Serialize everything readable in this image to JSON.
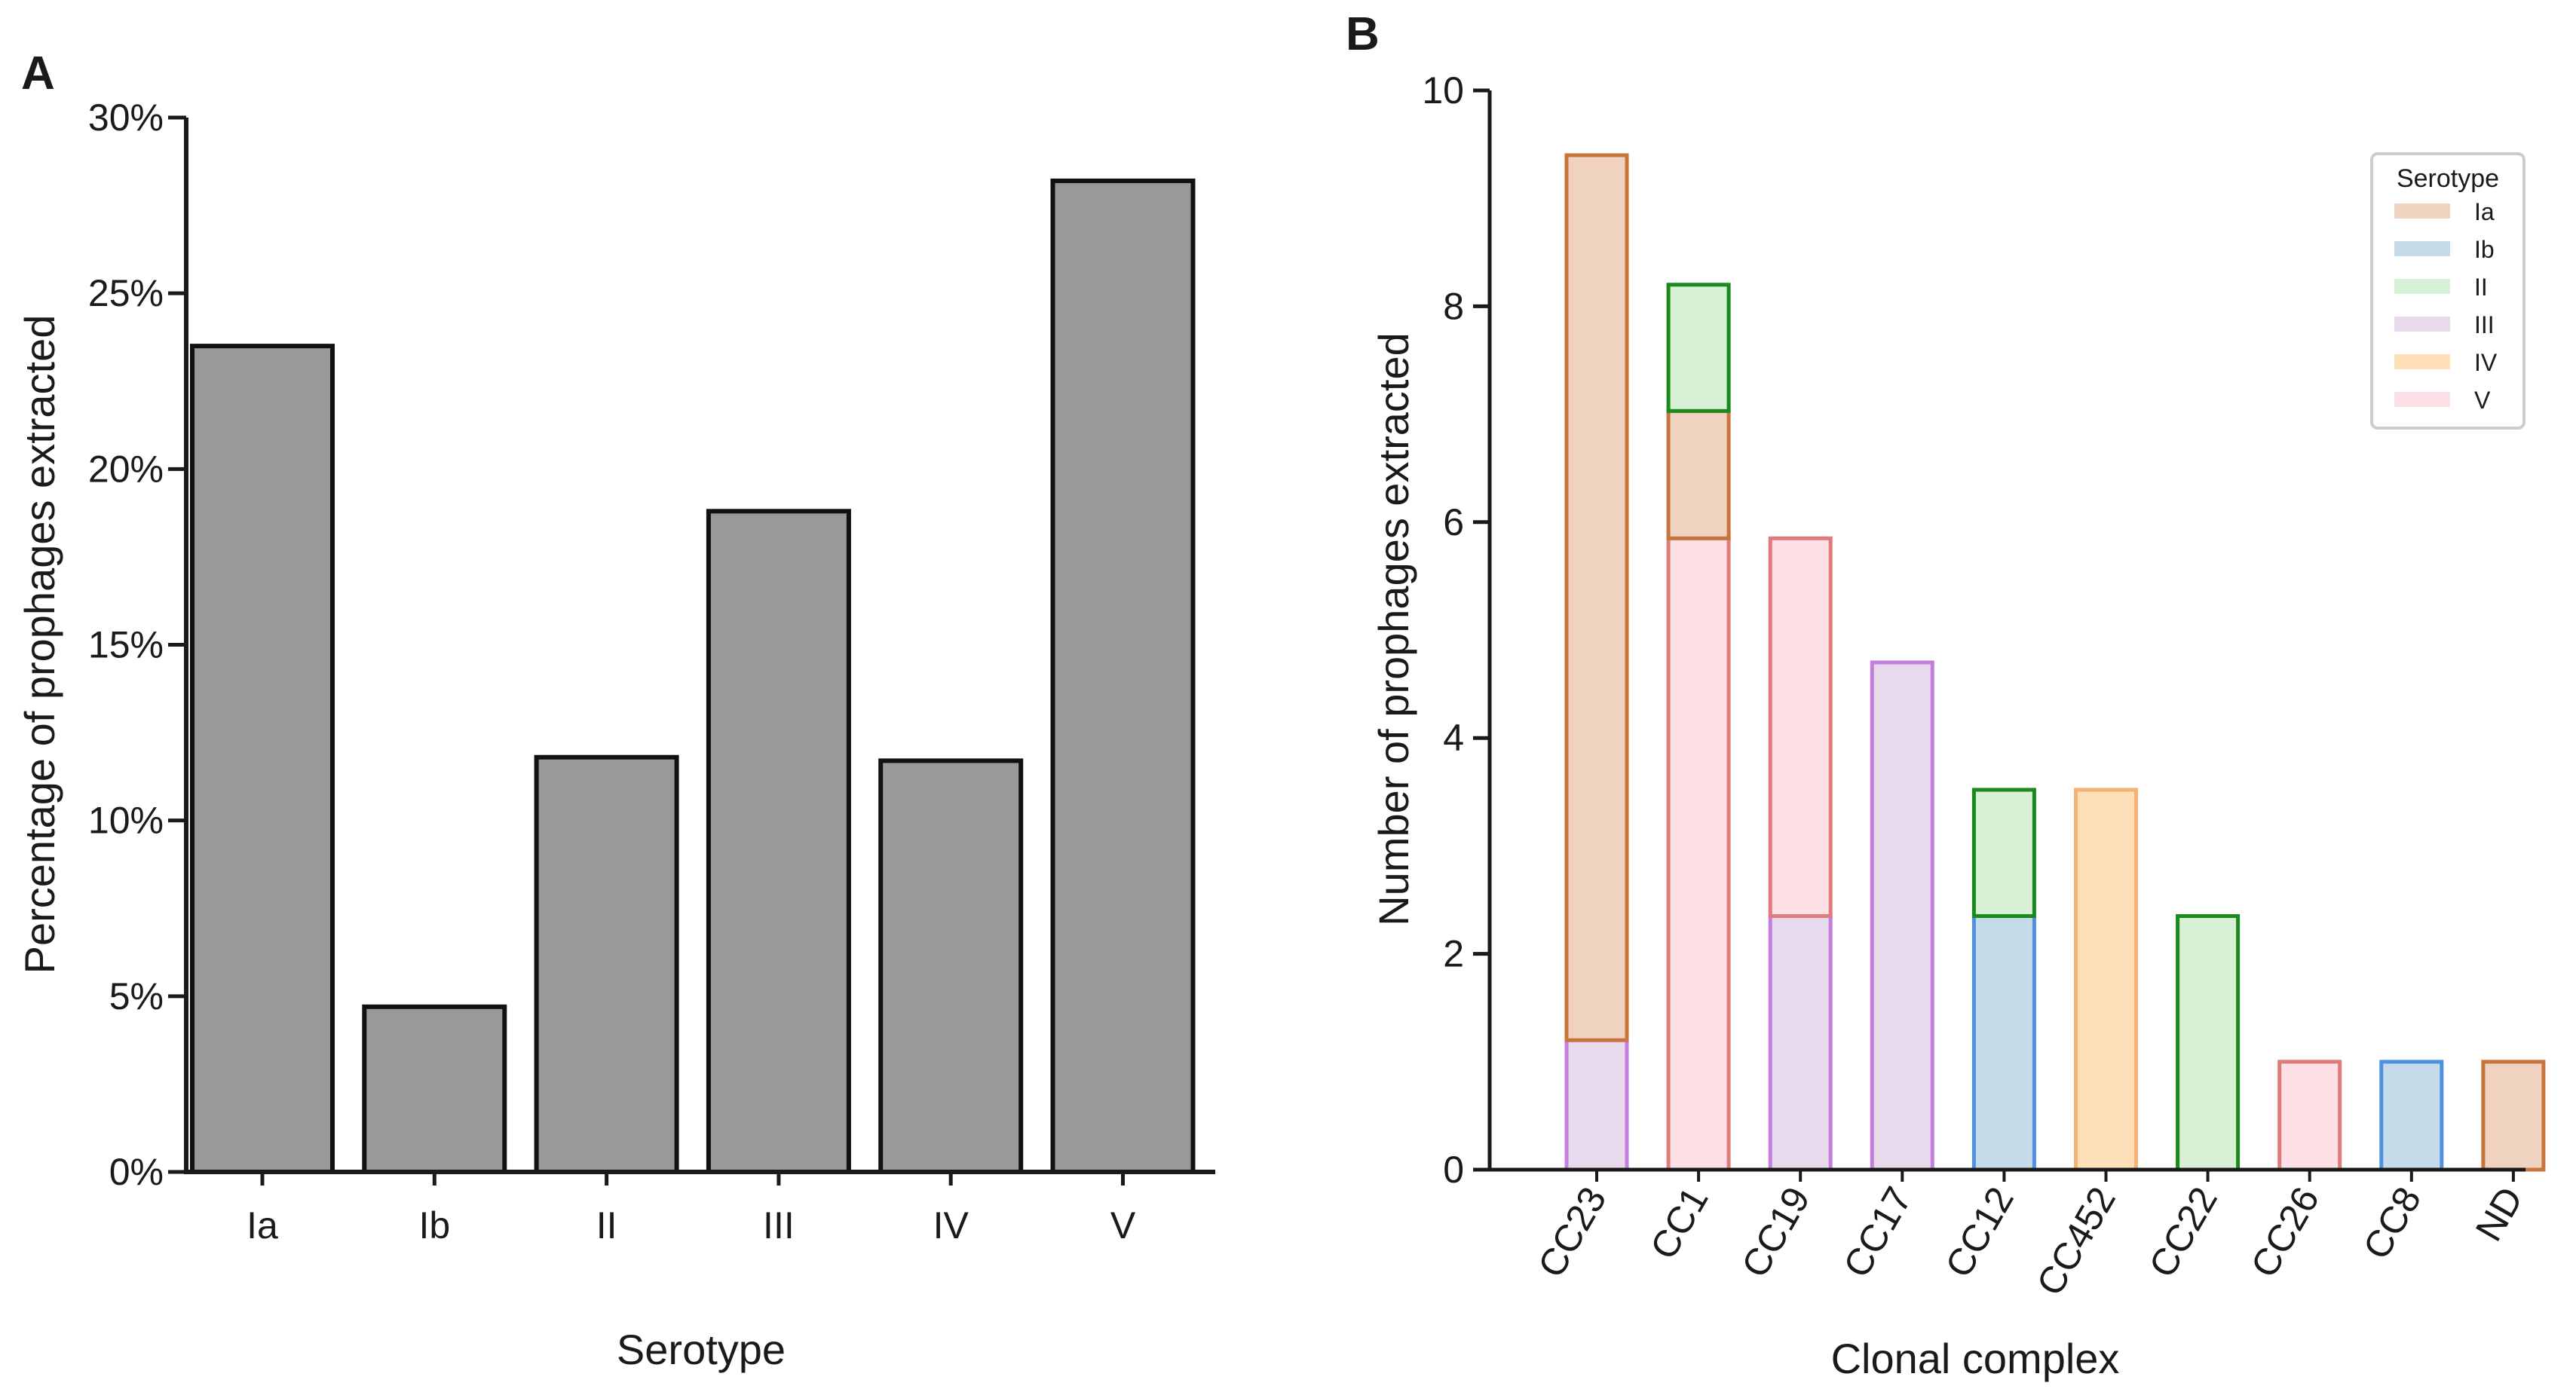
{
  "chart_data": [
    {
      "panel": "A",
      "type": "bar",
      "title": "",
      "xlabel": "Serotype",
      "ylabel": "Percentage of prophages extracted",
      "categories": [
        "Ia",
        "Ib",
        "II",
        "III",
        "IV",
        "V"
      ],
      "values": [
        23.5,
        4.7,
        11.8,
        18.8,
        11.7,
        28.2
      ],
      "ylim": [
        0,
        30
      ],
      "yticks": [
        0,
        5,
        10,
        15,
        20,
        25,
        30
      ],
      "ytick_labels": [
        "0%",
        "5%",
        "10%",
        "15%",
        "20%",
        "25%",
        "30%"
      ],
      "bar_color": "#999999",
      "grid": false
    },
    {
      "panel": "B",
      "type": "bar",
      "stacked": true,
      "title": "",
      "xlabel": "Clonal complex",
      "ylabel": "Number of prophages extracted",
      "categories": [
        "CC23",
        "CC1",
        "CC19",
        "CC17",
        "CC12",
        "CC452",
        "CC22",
        "CC26",
        "CC8",
        "ND"
      ],
      "ylim": [
        0,
        10
      ],
      "yticks": [
        0,
        2,
        4,
        6,
        8,
        10
      ],
      "ytick_labels": [
        "0",
        "2",
        "4",
        "6",
        "8",
        "10"
      ],
      "legend_title": "Serotype",
      "legend_position": "top-right",
      "grid": false,
      "series": [
        {
          "name": "III",
          "fill": "#e6daec",
          "edge": "#c47ee0",
          "values": [
            1.2,
            0,
            2.35,
            4.7,
            0,
            0,
            0,
            0,
            0,
            0
          ]
        },
        {
          "name": "V",
          "fill": "#fde0e6",
          "edge": "#e07b7b",
          "values": [
            0,
            5.85,
            3.5,
            0,
            0,
            0,
            0,
            1.0,
            0,
            0
          ]
        },
        {
          "name": "Ib",
          "fill": "#c6dbea",
          "edge": "#5090e0",
          "values": [
            0,
            0,
            0,
            0,
            2.35,
            0,
            0,
            0,
            1.0,
            0
          ]
        },
        {
          "name": "IV",
          "fill": "#fde0b8",
          "edge": "#f5b275",
          "values": [
            0,
            0,
            0,
            0,
            0,
            3.52,
            0,
            0,
            0,
            0
          ]
        },
        {
          "name": "Ia",
          "fill": "#f0d2c0",
          "edge": "#c8743c",
          "values": [
            8.2,
            1.18,
            0,
            0,
            0,
            0,
            0,
            0,
            0,
            1.0
          ]
        },
        {
          "name": "II",
          "fill": "#d8f0d5",
          "edge": "#1a8a1a",
          "values": [
            0,
            1.17,
            0,
            0,
            1.17,
            0,
            2.35,
            0,
            0,
            0
          ]
        }
      ],
      "legend_order": [
        "Ia",
        "Ib",
        "II",
        "III",
        "IV",
        "V"
      ]
    }
  ]
}
